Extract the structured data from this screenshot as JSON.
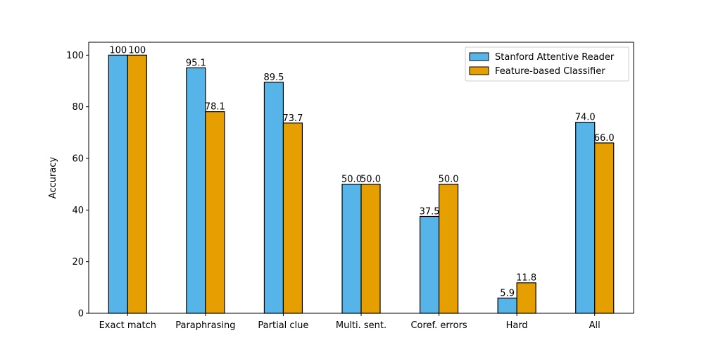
{
  "chart_data": {
    "type": "bar",
    "title": "",
    "xlabel": "",
    "ylabel": "Accuracy",
    "ylim": [
      0,
      105
    ],
    "yticks": [
      0,
      20,
      40,
      60,
      80,
      100
    ],
    "grid": false,
    "legend_position": "top-right",
    "categories": [
      "Exact match",
      "Paraphrasing",
      "Partial clue",
      "Multi. sent.",
      "Coref. errors",
      "Hard",
      "All"
    ],
    "series": [
      {
        "name": "Stanford Attentive Reader",
        "color": "#56B4E9",
        "values": [
          100,
          95.1,
          89.5,
          50.0,
          37.5,
          5.9,
          74.0
        ],
        "labels": [
          "100",
          "95.1",
          "89.5",
          "50.0",
          "37.5",
          "5.9",
          "74.0"
        ]
      },
      {
        "name": "Feature-based Classifier",
        "color": "#E69F00",
        "values": [
          100,
          78.1,
          73.7,
          50.0,
          50.0,
          11.8,
          66.0
        ],
        "labels": [
          "100",
          "78.1",
          "73.7",
          "50.0",
          "50.0",
          "11.8",
          "66.0"
        ]
      }
    ]
  }
}
